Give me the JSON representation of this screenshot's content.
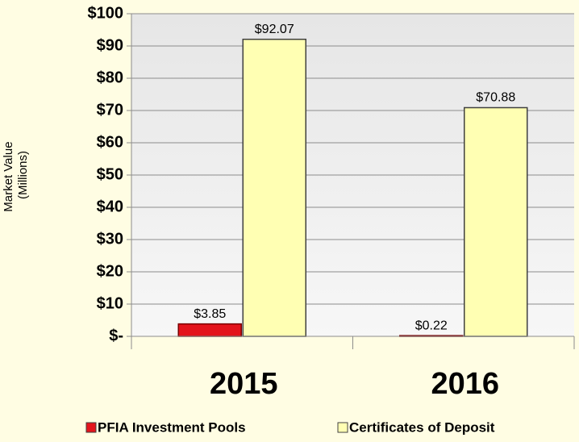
{
  "chart_data": {
    "type": "bar",
    "ylabel": [
      "Market Value",
      "(Millions)"
    ],
    "categories": [
      "2015",
      "2016"
    ],
    "series": [
      {
        "name": "PFIA Investment Pools",
        "color": "#e3141c",
        "values": [
          3.85,
          0.22
        ],
        "value_labels": [
          "$3.85",
          "$0.22"
        ]
      },
      {
        "name": "Certificates of Deposit",
        "color": "#ffffb3",
        "values": [
          92.07,
          70.88
        ],
        "value_labels": [
          "$92.07",
          "$70.88"
        ]
      }
    ],
    "ylim": [
      0,
      100
    ],
    "yticks": [
      {
        "value": 0,
        "label": "$-"
      },
      {
        "value": 10,
        "label": "$10"
      },
      {
        "value": 20,
        "label": "$20"
      },
      {
        "value": 30,
        "label": "$30"
      },
      {
        "value": 40,
        "label": "$40"
      },
      {
        "value": 50,
        "label": "$50"
      },
      {
        "value": 60,
        "label": "$60"
      },
      {
        "value": 70,
        "label": "$70"
      },
      {
        "value": 80,
        "label": "$80"
      },
      {
        "value": 90,
        "label": "$90"
      },
      {
        "value": 100,
        "label": "$100"
      }
    ],
    "grid": true
  }
}
